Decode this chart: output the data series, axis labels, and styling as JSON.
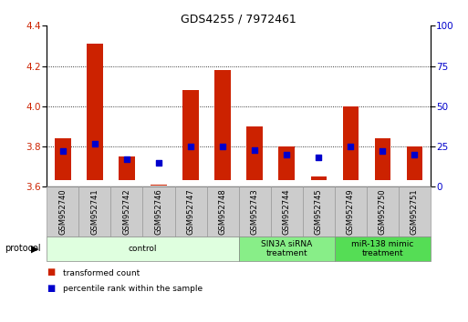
{
  "title": "GDS4255 / 7972461",
  "samples": [
    "GSM952740",
    "GSM952741",
    "GSM952742",
    "GSM952746",
    "GSM952747",
    "GSM952748",
    "GSM952743",
    "GSM952744",
    "GSM952745",
    "GSM952749",
    "GSM952750",
    "GSM952751"
  ],
  "transformed_count_top": [
    3.84,
    4.31,
    3.75,
    3.61,
    4.08,
    4.18,
    3.9,
    3.8,
    3.65,
    4.0,
    3.84,
    3.8
  ],
  "transformed_count_bottom": [
    3.635,
    3.635,
    3.635,
    3.605,
    3.635,
    3.635,
    3.635,
    3.635,
    3.635,
    3.635,
    3.635,
    3.635
  ],
  "percentile_rank": [
    22,
    27,
    17,
    15,
    25,
    25,
    23,
    20,
    18,
    25,
    22,
    20
  ],
  "ylim_left": [
    3.6,
    4.4
  ],
  "ylim_right": [
    0,
    100
  ],
  "yticks_left": [
    3.6,
    3.8,
    4.0,
    4.2,
    4.4
  ],
  "yticks_right": [
    0,
    25,
    50,
    75,
    100
  ],
  "groups": [
    {
      "label": "control",
      "start": 0,
      "end": 6,
      "color": "#dfffdf"
    },
    {
      "label": "SIN3A siRNA\ntreatment",
      "start": 6,
      "end": 9,
      "color": "#88ee88"
    },
    {
      "label": "miR-138 mimic\ntreatment",
      "start": 9,
      "end": 12,
      "color": "#55dd55"
    }
  ],
  "bar_color": "#cc2200",
  "dot_color": "#0000cc",
  "grid_color": "#000000",
  "bg_color": "#ffffff",
  "tick_label_color_left": "#cc2200",
  "tick_label_color_right": "#0000cc",
  "bar_width": 0.5,
  "dot_size": 20,
  "legend_items": [
    "transformed count",
    "percentile rank within the sample"
  ],
  "label_box_color": "#cccccc",
  "label_box_edge": "#999999"
}
